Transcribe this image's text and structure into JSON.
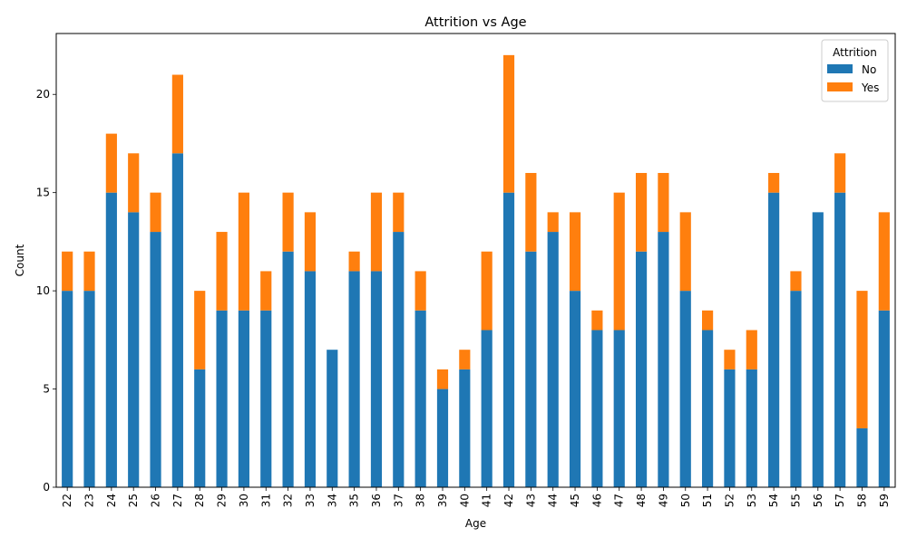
{
  "chart_data": {
    "type": "bar",
    "stacked": true,
    "title": "Attrition vs Age",
    "xlabel": "Age",
    "ylabel": "Count",
    "ylim": [
      0,
      23.1
    ],
    "yticks": [
      0,
      5,
      10,
      15,
      20
    ],
    "grid": false,
    "legend": {
      "title": "Attrition",
      "placement": "top-right"
    },
    "categories": [
      "22",
      "23",
      "24",
      "25",
      "26",
      "27",
      "28",
      "29",
      "30",
      "31",
      "32",
      "33",
      "34",
      "35",
      "36",
      "37",
      "38",
      "39",
      "40",
      "41",
      "42",
      "43",
      "44",
      "45",
      "46",
      "47",
      "48",
      "49",
      "50",
      "51",
      "52",
      "53",
      "54",
      "55",
      "56",
      "57",
      "58",
      "59"
    ],
    "series": [
      {
        "name": "No",
        "color": "#1f77b4",
        "values": [
          10,
          10,
          15,
          14,
          13,
          17,
          6,
          9,
          9,
          9,
          12,
          11,
          7,
          11,
          11,
          13,
          9,
          5,
          6,
          8,
          15,
          12,
          13,
          10,
          8,
          8,
          12,
          13,
          10,
          8,
          6,
          6,
          15,
          10,
          14,
          15,
          3,
          9
        ]
      },
      {
        "name": "Yes",
        "color": "#ff7f0e",
        "values": [
          2,
          2,
          3,
          3,
          2,
          4,
          4,
          4,
          6,
          2,
          3,
          3,
          0,
          1,
          4,
          2,
          2,
          1,
          1,
          4,
          7,
          4,
          1,
          4,
          1,
          7,
          4,
          3,
          4,
          1,
          1,
          2,
          1,
          1,
          0,
          2,
          7,
          5
        ]
      }
    ]
  }
}
